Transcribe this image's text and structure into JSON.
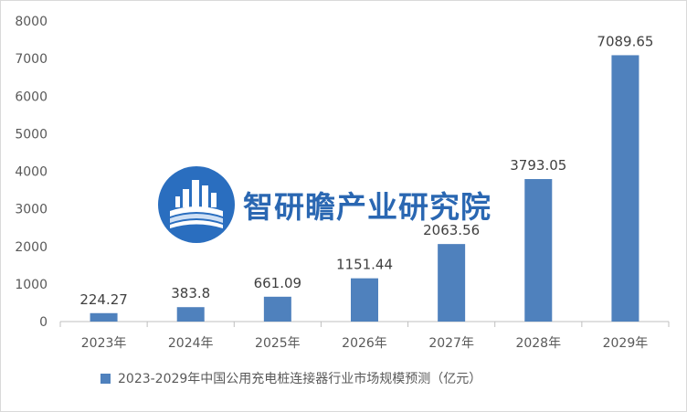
{
  "chart_data": {
    "type": "bar",
    "categories": [
      "2023年",
      "2024年",
      "2025年",
      "2026年",
      "2027年",
      "2028年",
      "2029年"
    ],
    "series": [
      {
        "name": "2023-2029年中国公用充电桩连接器行业市场规模预测（亿元）",
        "values": [
          224.27,
          383.8,
          661.09,
          1151.44,
          2063.56,
          3793.05,
          7089.65
        ],
        "labels": [
          "224.27",
          "383.8",
          "661.09",
          "1151.44",
          "2063.56",
          "3793.05",
          "7089.65"
        ]
      }
    ],
    "ylim": [
      0,
      8000
    ],
    "yticks": [
      0,
      1000,
      2000,
      3000,
      4000,
      5000,
      6000,
      7000,
      8000
    ],
    "grid": false,
    "legend": "bottom",
    "colors": {
      "bar": "#4f81bd",
      "axis": "#bfbfbf"
    }
  },
  "watermark": {
    "text": "智研瞻产业研究院",
    "logo_icon": "book-building-logo-icon",
    "color": "#1f5fae"
  }
}
